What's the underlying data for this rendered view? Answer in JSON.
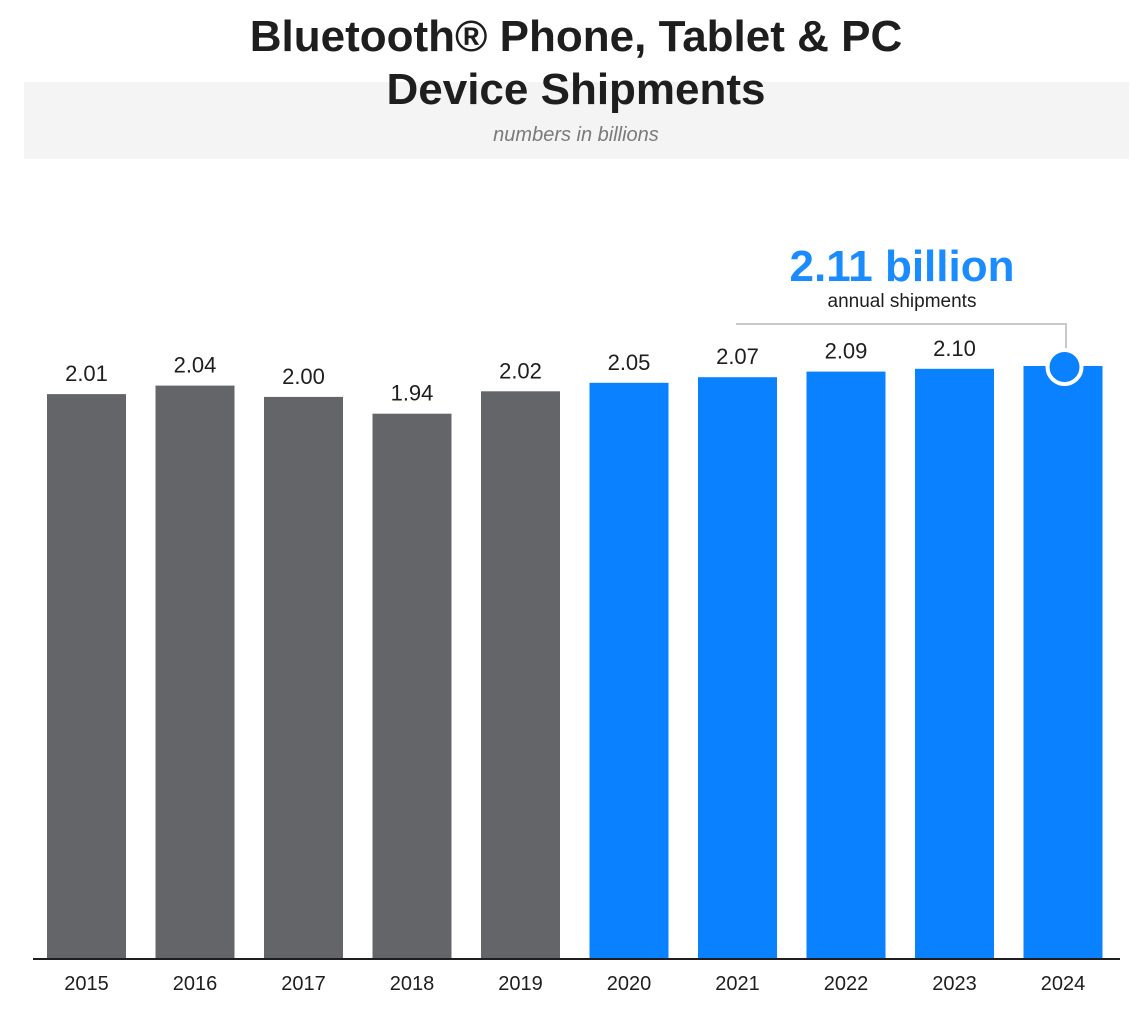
{
  "header": {
    "title_line1": "Bluetooth® Phone, Tablet & PC",
    "title_line2": "Device Shipments",
    "subtitle": "numbers in billions"
  },
  "callout": {
    "value": "2.11 billion",
    "caption": "annual shipments"
  },
  "colors": {
    "historical": "#646569",
    "recent": "#0a82ff",
    "callout_text": "#1a8cff",
    "text": "#1e1e1e"
  },
  "chart_data": {
    "type": "bar",
    "title": "Bluetooth® Phone, Tablet & PC Device Shipments",
    "subtitle": "numbers in billions",
    "categories": [
      "2015",
      "2016",
      "2017",
      "2018",
      "2019",
      "2020",
      "2021",
      "2022",
      "2023",
      "2024"
    ],
    "values": [
      2.01,
      2.04,
      2.0,
      1.94,
      2.02,
      2.05,
      2.07,
      2.09,
      2.1,
      2.11
    ],
    "value_labels": [
      "2.01",
      "2.04",
      "2.00",
      "1.94",
      "2.02",
      "2.05",
      "2.07",
      "2.09",
      "2.10",
      ""
    ],
    "series_color_group": [
      "historical",
      "historical",
      "historical",
      "historical",
      "historical",
      "recent",
      "recent",
      "recent",
      "recent",
      "recent"
    ],
    "highlight_index": 9,
    "xlabel": "",
    "ylabel": "",
    "ylim": [
      0,
      2.11
    ],
    "grid": false
  }
}
